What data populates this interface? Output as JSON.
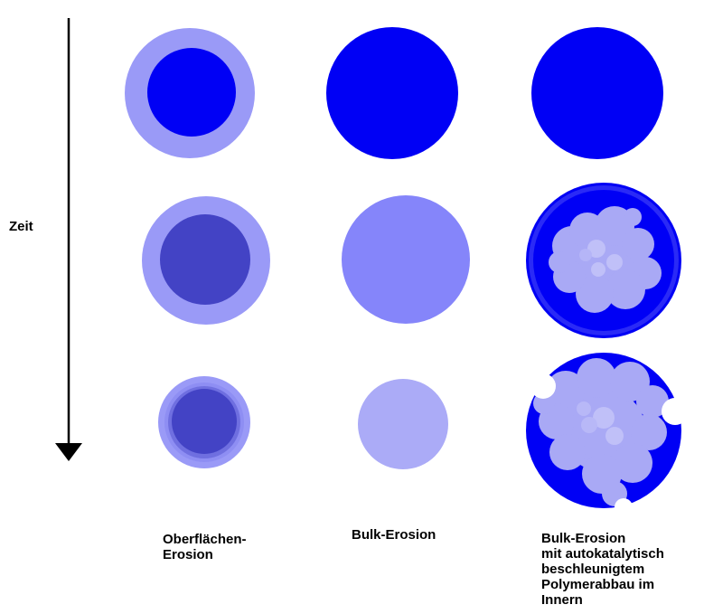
{
  "axis": {
    "time_label": "Zeit"
  },
  "colors": {
    "blue": "#0000f5",
    "dark_core": "#4343c5",
    "light_ring": "#9a9af7",
    "bulk_mid": "#8585fa",
    "bulk_light": "#ababf7",
    "pore": "#a9a9f5",
    "pore_inner": "#c0c0f8",
    "white": "#ffffff",
    "arrow": "#000000"
  },
  "columns": [
    {
      "lines": [
        "Oberflächen-",
        "Erosion"
      ]
    },
    {
      "lines": [
        "Bulk-Erosion"
      ]
    },
    {
      "lines": [
        "Bulk-Erosion",
        "mit autokatalytisch",
        "beschleunigtem",
        "Polymerabbau im",
        "Innern"
      ]
    }
  ]
}
